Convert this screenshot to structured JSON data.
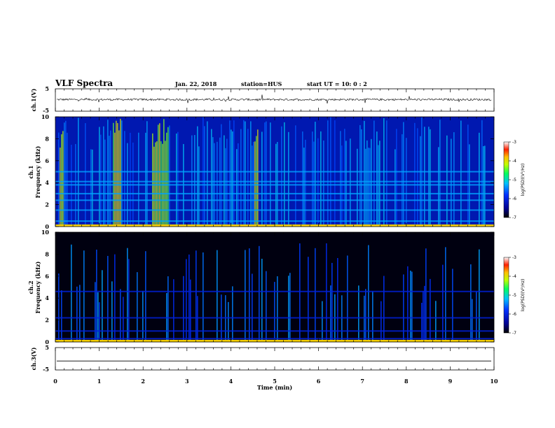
{
  "header": {
    "title": "VLF Spectra",
    "date": "Jan. 22, 2018",
    "station": "station=HUS",
    "start_ut": "start UT =  10: 0  : 2"
  },
  "chart_data": [
    {
      "type": "line",
      "panel": "ch1-waveform",
      "ylabel": "ch.1(V)",
      "ylim": [
        -5,
        5
      ],
      "yticks": [
        "5",
        "-5"
      ],
      "trace_level": 0.2,
      "color": "#000000"
    },
    {
      "type": "heatmap",
      "panel": "ch1-spectrogram",
      "ylabel_top": "ch.1",
      "ylabel": "Frequency (kHz)",
      "ylim": [
        0,
        10
      ],
      "yticks": [
        "0",
        "2",
        "4",
        "6",
        "8",
        "10"
      ],
      "colorbar": {
        "label": "log(PSD)(V²/Hz)",
        "range": [
          -7,
          -3
        ],
        "ticks": [
          "-3",
          "-4",
          "-5",
          "-6",
          "-7"
        ]
      },
      "background_level": -6.2,
      "bright_bands_min": [
        [
          1.25,
          1.45
        ],
        [
          2.15,
          2.55
        ],
        [
          0.05,
          0.15
        ],
        [
          4.5,
          4.6
        ]
      ],
      "line_freqs_khz": [
        0.5,
        1.5,
        2.4,
        3.0,
        3.8,
        4.1,
        5.0
      ]
    },
    {
      "type": "heatmap",
      "panel": "ch2-spectrogram",
      "ylabel_top": "ch.2",
      "ylabel": "Frequency (kHz)",
      "ylim": [
        0,
        10
      ],
      "yticks": [
        "0",
        "2",
        "4",
        "6",
        "8",
        "10"
      ],
      "colorbar": {
        "label": "log(PSD)(V²/Hz)",
        "range": [
          -7,
          -3
        ],
        "ticks": [
          "-3",
          "-4",
          "-5",
          "-6",
          "-7"
        ]
      },
      "background_level": -6.9,
      "line_freqs_khz": [
        0.3,
        1.0,
        2.2,
        4.6
      ]
    },
    {
      "type": "line",
      "panel": "ch3-waveform",
      "ylabel": "ch.3(V)",
      "ylim": [
        -5,
        5
      ],
      "yticks": [
        "5",
        "-5"
      ],
      "trace_level": -1.0,
      "xlabel": "Time (min)",
      "xlim": [
        0,
        10
      ],
      "xticks": [
        "0",
        "1",
        "2",
        "3",
        "4",
        "5",
        "6",
        "7",
        "8",
        "9",
        "10"
      ],
      "color": "#000000"
    }
  ]
}
